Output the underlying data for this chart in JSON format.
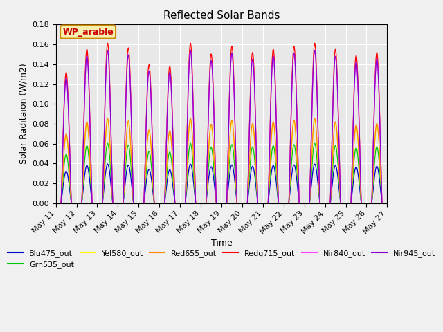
{
  "title": "Reflected Solar Bands",
  "xlabel": "Time",
  "ylabel": "Solar Raditaion (W/m2)",
  "annotation_text": "WP_arable",
  "annotation_bg": "#f5f0b0",
  "annotation_border": "#cc8800",
  "annotation_text_color": "#cc0000",
  "ylim": [
    0,
    0.18
  ],
  "plot_bg": "#e8e8e8",
  "fig_bg": "#f0f0f0",
  "series": [
    {
      "label": "Blu475_out",
      "color": "#0000cc",
      "scale": 0.038
    },
    {
      "label": "Grn535_out",
      "color": "#00cc00",
      "scale": 0.058
    },
    {
      "label": "Yel580_out",
      "color": "#ffff00",
      "scale": 0.08
    },
    {
      "label": "Red655_out",
      "color": "#ff8800",
      "scale": 0.082
    },
    {
      "label": "Redg715_out",
      "color": "#ff0000",
      "scale": 0.155
    },
    {
      "label": "Nir840_out",
      "color": "#ff44ff",
      "scale": 0.148
    },
    {
      "label": "Nir945_out",
      "color": "#8800cc",
      "scale": 0.148
    }
  ],
  "n_show_days": 16,
  "start_day": 11,
  "samples_per_day": 200,
  "day_variation": [
    0.85,
    1.0,
    1.04,
    1.01,
    0.9,
    0.89,
    1.04,
    0.97,
    1.02,
    0.98,
    1.0,
    1.02,
    1.04,
    1.0,
    0.96,
    0.98
  ],
  "grid_color": "#ffffff",
  "tick_label_size": 8,
  "linewidth": 0.9
}
